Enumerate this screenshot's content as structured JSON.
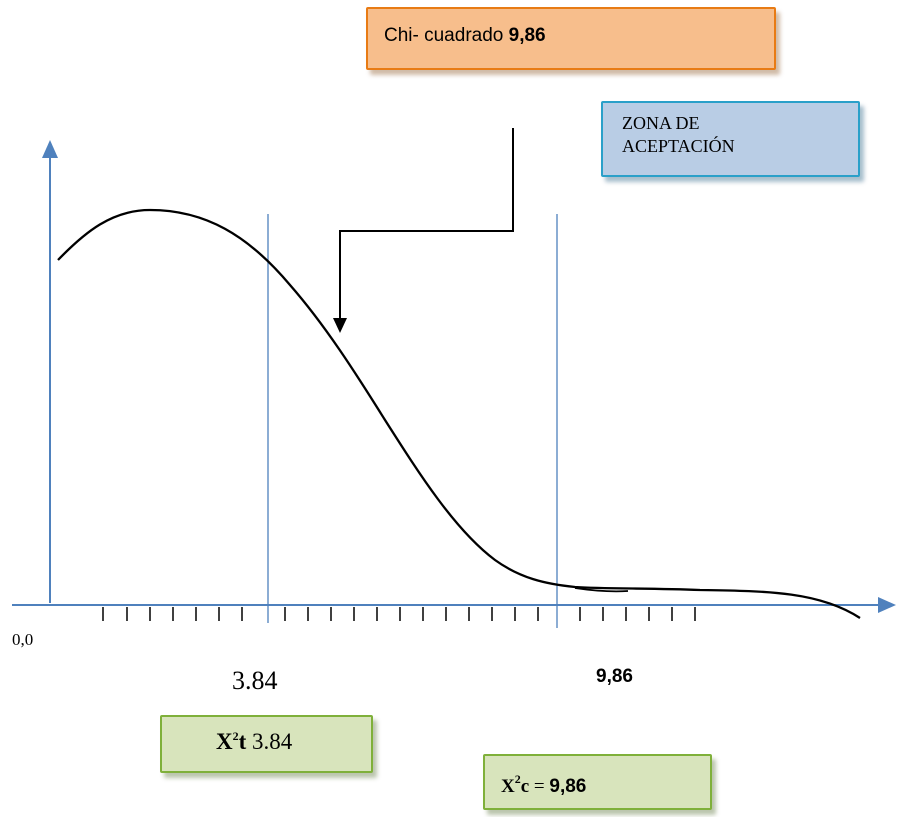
{
  "callouts": {
    "chi_square": {
      "label": "Chi- cuadrado",
      "value": "9,86"
    },
    "zone": {
      "line1": "ZONA DE",
      "line2": "ACEPTACIÓN"
    },
    "x2t": {
      "symbol": "X",
      "sup": "2",
      "sub": "t",
      "value": "3.84"
    },
    "x2c": {
      "symbol": "X",
      "sup": "2",
      "sub": "c",
      "eq": "=",
      "value": "9,86"
    }
  },
  "axis_labels": {
    "origin": "0,0",
    "critical": "3.84",
    "calculated": "9,86"
  },
  "colors": {
    "axis": "#4f81bd",
    "curve": "#000000",
    "orange_fill": "#f7be8c",
    "blue_fill": "#b9cde5",
    "green_fill": "#d8e4bc"
  }
}
